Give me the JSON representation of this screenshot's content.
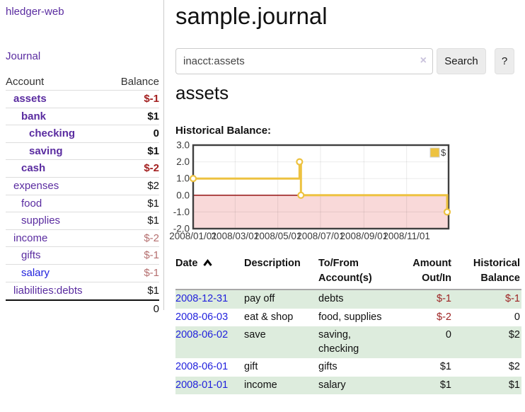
{
  "app": {
    "title": "hledger-web",
    "nav_journal": "Journal"
  },
  "sidebar": {
    "header": {
      "account": "Account",
      "balance": "Balance"
    },
    "accounts": [
      {
        "name": "assets",
        "indent": 1,
        "bold": true,
        "balance": "$-1",
        "balance_style": "neg-strong"
      },
      {
        "name": "bank",
        "indent": 2,
        "bold": true,
        "balance": "$1",
        "balance_style": "pos"
      },
      {
        "name": "checking",
        "indent": 3,
        "bold": true,
        "balance": "0",
        "balance_style": "pos"
      },
      {
        "name": "saving",
        "indent": 3,
        "bold": true,
        "balance": "$1",
        "balance_style": "pos"
      },
      {
        "name": "cash",
        "indent": 2,
        "bold": true,
        "balance": "$-2",
        "balance_style": "neg-strong"
      },
      {
        "name": "expenses",
        "indent": 1,
        "bold": false,
        "balance": "$2",
        "balance_style": "pos"
      },
      {
        "name": "food",
        "indent": 2,
        "bold": false,
        "balance": "$1",
        "balance_style": "pos"
      },
      {
        "name": "supplies",
        "indent": 2,
        "bold": false,
        "balance": "$1",
        "balance_style": "pos"
      },
      {
        "name": "income",
        "indent": 1,
        "bold": false,
        "balance": "$-2",
        "balance_style": "neg-soft"
      },
      {
        "name": "gifts",
        "indent": 2,
        "bold": false,
        "balance": "$-1",
        "balance_style": "neg-soft"
      },
      {
        "name": "salary",
        "indent": 2,
        "bold": false,
        "link_color": "blue",
        "balance": "$-1",
        "balance_style": "neg-soft"
      },
      {
        "name": "liabilities:debts",
        "indent": 1,
        "bold": false,
        "balance": "$1",
        "balance_style": "pos"
      }
    ],
    "total": "0"
  },
  "header": {
    "title": "sample.journal"
  },
  "search": {
    "value": "inacct:assets",
    "clear_icon": "×",
    "button": "Search",
    "help_button": "?"
  },
  "account_page": {
    "title": "assets",
    "chart_label": "Historical Balance:"
  },
  "chart_data": {
    "type": "line",
    "mode": "steps",
    "title": "Historical Balance:",
    "legend": {
      "label": "$",
      "swatch_color": "#edc240",
      "position": "top-right"
    },
    "line_color": "#edc240",
    "zero_line_color": "#8b0000",
    "negative_fill": "#f9d9d9",
    "grid": true,
    "ylim": [
      -2,
      3
    ],
    "x_range_days": 365,
    "y_ticks": [
      {
        "label": "3.0",
        "value": 3
      },
      {
        "label": "2.0",
        "value": 2
      },
      {
        "label": "1.0",
        "value": 1
      },
      {
        "label": "0.0",
        "value": 0
      },
      {
        "label": "-1.0",
        "value": -1
      },
      {
        "label": "-2.0",
        "value": -2
      }
    ],
    "x_ticks": [
      {
        "label": "2008/01/01",
        "day": 0
      },
      {
        "label": "2008/03/01",
        "day": 60
      },
      {
        "label": "2008/05/01",
        "day": 121
      },
      {
        "label": "2008/07/01",
        "day": 182
      },
      {
        "label": "2008/09/01",
        "day": 244
      },
      {
        "label": "2008/11/01",
        "day": 305
      }
    ],
    "series": [
      {
        "name": "$",
        "points": [
          {
            "date": "2008-01-01",
            "day": 0,
            "value": 1
          },
          {
            "date": "2008-06-01",
            "day": 152,
            "value": 2
          },
          {
            "date": "2008-06-03",
            "day": 154,
            "value": 0
          },
          {
            "date": "2008-12-31",
            "day": 365,
            "value": -1
          }
        ]
      }
    ]
  },
  "register": {
    "columns": [
      {
        "label": "Date",
        "align": "l",
        "sort_icon": true
      },
      {
        "label": "Description",
        "align": "l"
      },
      {
        "label": "To/From Account(s)",
        "align": "l"
      },
      {
        "label": "Amount Out/In",
        "align": "r"
      },
      {
        "label": "Historical Balance",
        "align": "r"
      }
    ],
    "rows": [
      {
        "date": "2008-12-31",
        "description": "pay off",
        "accounts": "debts",
        "amount": "$-1",
        "amount_negative": true,
        "balance": "$-1",
        "balance_negative": true
      },
      {
        "date": "2008-06-03",
        "description": "eat & shop",
        "accounts": "food, supplies",
        "amount": "$-2",
        "amount_negative": true,
        "balance": "0",
        "balance_negative": false
      },
      {
        "date": "2008-06-02",
        "description": "save",
        "accounts": "saving, checking",
        "amount": "0",
        "amount_negative": false,
        "balance": "$2",
        "balance_negative": false
      },
      {
        "date": "2008-06-01",
        "description": "gift",
        "accounts": "gifts",
        "amount": "$1",
        "amount_negative": false,
        "balance": "$2",
        "balance_negative": false
      },
      {
        "date": "2008-01-01",
        "description": "income",
        "accounts": "salary",
        "amount": "$1",
        "amount_negative": false,
        "balance": "$1",
        "balance_negative": false
      }
    ]
  }
}
